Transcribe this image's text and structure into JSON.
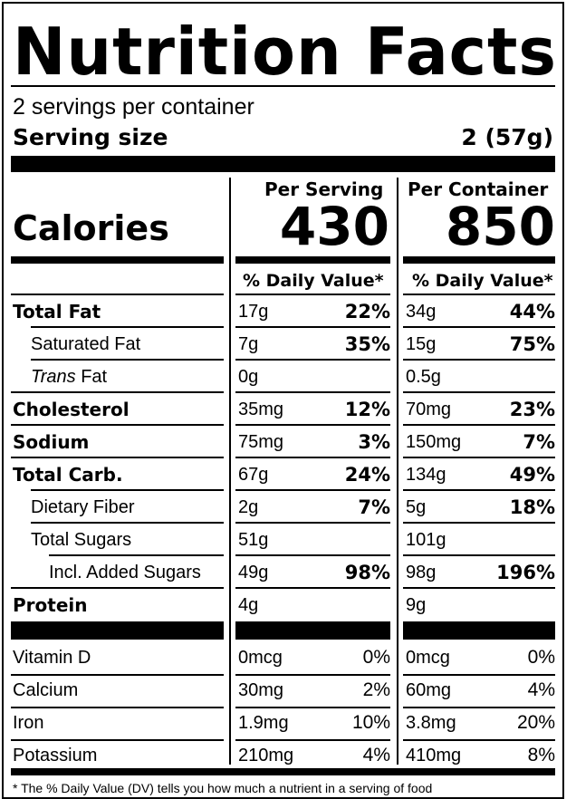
{
  "title": "Nutrition Facts",
  "servings_per_container": "2 servings per container",
  "serving_size_label": "Serving size",
  "serving_size_value": "2 (57g)",
  "calories_label": "Calories",
  "columns": [
    {
      "header": "Per Serving",
      "calories": "430",
      "dv_header": "% Daily Value*"
    },
    {
      "header": "Per Container",
      "calories": "850",
      "dv_header": "% Daily Value*"
    }
  ],
  "nutrients": [
    {
      "name": "Total Fat",
      "bold": true,
      "indent": 0,
      "serving": {
        "amount": "17g",
        "dv": "22%"
      },
      "container": {
        "amount": "34g",
        "dv": "44%"
      }
    },
    {
      "name": "Saturated Fat",
      "bold": false,
      "indent": 1,
      "serving": {
        "amount": "7g",
        "dv": "35%"
      },
      "container": {
        "amount": "15g",
        "dv": "75%"
      }
    },
    {
      "name": "Trans",
      "name_suffix": " Fat",
      "italic_prefix": true,
      "bold": false,
      "indent": 1,
      "serving": {
        "amount": "0g",
        "dv": ""
      },
      "container": {
        "amount": "0.5g",
        "dv": ""
      }
    },
    {
      "name": "Cholesterol",
      "bold": true,
      "indent": 0,
      "serving": {
        "amount": "35mg",
        "dv": "12%"
      },
      "container": {
        "amount": "70mg",
        "dv": "23%"
      }
    },
    {
      "name": "Sodium",
      "bold": true,
      "indent": 0,
      "serving": {
        "amount": "75mg",
        "dv": "3%"
      },
      "container": {
        "amount": "150mg",
        "dv": "7%"
      }
    },
    {
      "name": "Total Carb.",
      "bold": true,
      "indent": 0,
      "serving": {
        "amount": "67g",
        "dv": "24%"
      },
      "container": {
        "amount": "134g",
        "dv": "49%"
      }
    },
    {
      "name": "Dietary Fiber",
      "bold": false,
      "indent": 1,
      "serving": {
        "amount": "2g",
        "dv": "7%"
      },
      "container": {
        "amount": "5g",
        "dv": "18%"
      }
    },
    {
      "name": "Total Sugars",
      "bold": false,
      "indent": 1,
      "serving": {
        "amount": "51g",
        "dv": ""
      },
      "container": {
        "amount": "101g",
        "dv": ""
      }
    },
    {
      "name": "Incl. Added Sugars",
      "bold": false,
      "indent": 2,
      "serving": {
        "amount": "49g",
        "dv": "98%"
      },
      "container": {
        "amount": "98g",
        "dv": "196%"
      }
    },
    {
      "name": "Protein",
      "bold": true,
      "indent": 0,
      "serving": {
        "amount": "4g",
        "dv": ""
      },
      "container": {
        "amount": "9g",
        "dv": ""
      }
    }
  ],
  "vitamins": [
    {
      "name": "Vitamin D",
      "serving": {
        "amount": "0mcg",
        "dv": "0%"
      },
      "container": {
        "amount": "0mcg",
        "dv": "0%"
      }
    },
    {
      "name": "Calcium",
      "serving": {
        "amount": "30mg",
        "dv": "2%"
      },
      "container": {
        "amount": "60mg",
        "dv": "4%"
      }
    },
    {
      "name": "Iron",
      "serving": {
        "amount": "1.9mg",
        "dv": "10%"
      },
      "container": {
        "amount": "3.8mg",
        "dv": "20%"
      }
    },
    {
      "name": "Potassium",
      "serving": {
        "amount": "210mg",
        "dv": "4%"
      },
      "container": {
        "amount": "410mg",
        "dv": "8%"
      }
    }
  ],
  "footnote": "* The % Daily Value (DV) tells you how much a nutrient in a serving of food"
}
